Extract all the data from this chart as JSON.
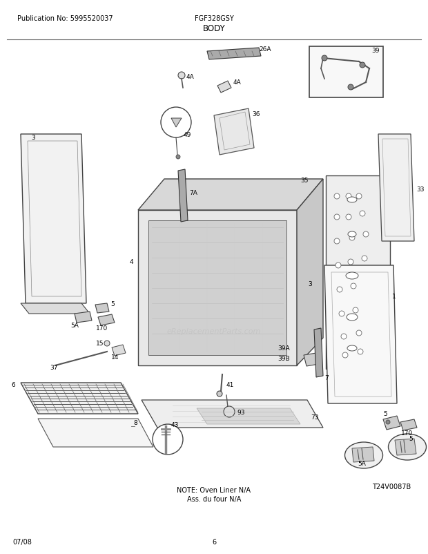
{
  "title_left": "Publication No: 5995520037",
  "title_center": "FGF328GSY",
  "title_body": "BODY",
  "footer_left": "07/08",
  "footer_center": "6",
  "footer_right": "T24V0087B",
  "note_line1": "NOTE: Oven Liner N/A",
  "note_line2": "Ass. du four N/A",
  "watermark": "eReplacementParts.com",
  "bg_color": "#ffffff",
  "text_color": "#000000",
  "gray_fill": "#e8e8e8",
  "dark_gray": "#555555",
  "mid_gray": "#888888",
  "light_gray": "#cccccc",
  "header_font_size": 7.0,
  "title_font_size": 8.5,
  "footer_font_size": 7.0,
  "note_font_size": 7.0,
  "label_font_size": 6.5
}
